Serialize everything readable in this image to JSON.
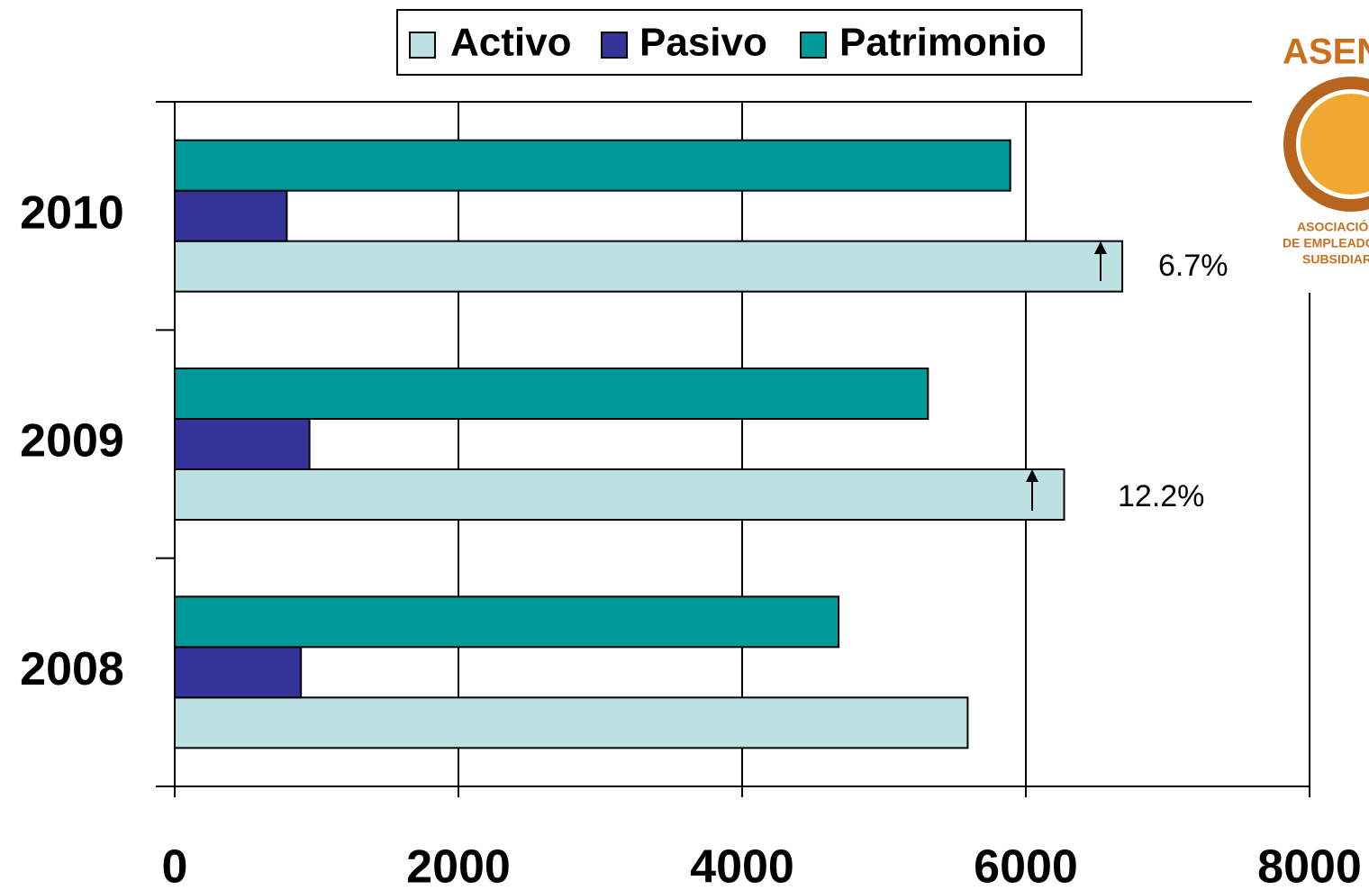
{
  "chart_data": {
    "type": "barh",
    "categories": [
      "2008",
      "2009",
      "2010"
    ],
    "series": [
      {
        "name": "Activo",
        "color": "#bde0e2",
        "values": [
          5590,
          6270,
          6680
        ]
      },
      {
        "name": "Pasivo",
        "color": "#333399",
        "values": [
          890,
          950,
          790
        ]
      },
      {
        "name": "Patrimonio",
        "color": "#009999",
        "values": [
          4680,
          5310,
          5890
        ]
      }
    ],
    "xlim": [
      0,
      8000
    ],
    "xticks": [
      0,
      2000,
      4000,
      6000,
      8000
    ],
    "grid": true,
    "legend": "top",
    "annotations": [
      "6.7%",
      "12.2%"
    ],
    "logo": {
      "name": "ASEN",
      "line1": "ASOCIACIÓN",
      "line2": "DE EMPLEADOS",
      "line3": "SUBSIDIARI"
    }
  }
}
